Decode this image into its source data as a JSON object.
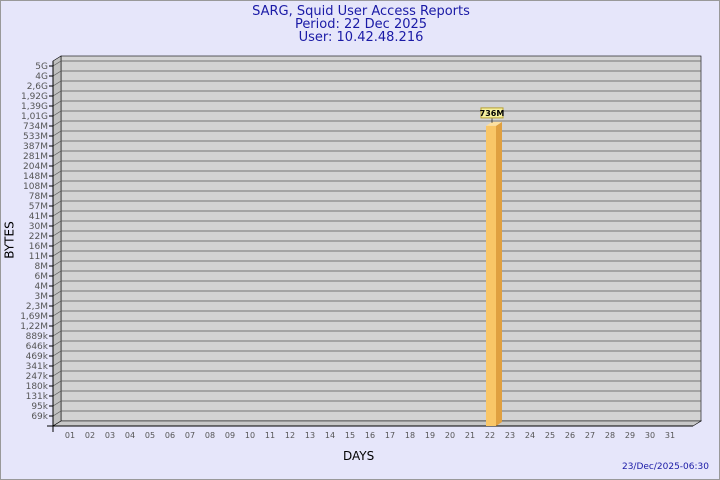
{
  "header": {
    "title": "SARG, Squid User Access Reports",
    "period": "Period: 22 Dec 2025",
    "user": "User: 10.42.48.216"
  },
  "footer": {
    "timestamp": "23/Dec/2025-06:30"
  },
  "chart_data": {
    "type": "bar",
    "xlabel": "DAYS",
    "ylabel": "BYTES",
    "y_scale": "log",
    "grid": true,
    "ytick_labels": [
      "5G",
      "4G",
      "2,6G",
      "1,92G",
      "1,39G",
      "1,01G",
      "734M",
      "533M",
      "387M",
      "281M",
      "204M",
      "148M",
      "108M",
      "78M",
      "57M",
      "41M",
      "30M",
      "22M",
      "16M",
      "11M",
      "8M",
      "6M",
      "4M",
      "3M",
      "2,3M",
      "1,69M",
      "1,22M",
      "889k",
      "646k",
      "469k",
      "341k",
      "247k",
      "180k",
      "131k",
      "95k",
      "69k"
    ],
    "categories": [
      "01",
      "02",
      "03",
      "04",
      "05",
      "06",
      "07",
      "08",
      "09",
      "10",
      "11",
      "12",
      "13",
      "14",
      "15",
      "16",
      "17",
      "18",
      "19",
      "20",
      "21",
      "22",
      "23",
      "24",
      "25",
      "26",
      "27",
      "28",
      "29",
      "30",
      "31"
    ],
    "bars": [
      {
        "day": "22",
        "value_label": "736M"
      }
    ],
    "colors": {
      "bar": "#f9c667",
      "bar_side": "#e0a040",
      "plot": "#d3d3d3",
      "background": "#e6e6fa"
    }
  }
}
